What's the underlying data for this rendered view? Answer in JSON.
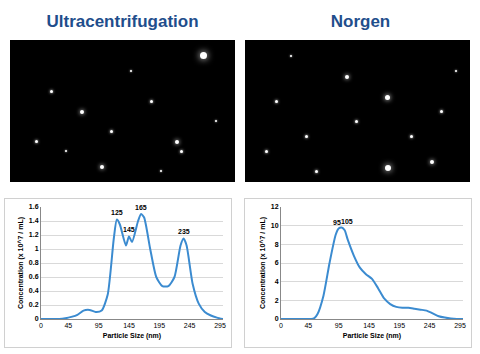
{
  "chart_data": [
    {
      "type": "line",
      "title": "Ultracentrifugation",
      "color": "#3b8bd0",
      "grid": true,
      "x_label": "Particle Size (nm)",
      "y_label": "Concentration (x 10^7 / mL)",
      "x": [
        0,
        10,
        20,
        30,
        40,
        50,
        60,
        70,
        80,
        90,
        100,
        110,
        120,
        125,
        130,
        140,
        145,
        150,
        160,
        165,
        170,
        180,
        190,
        200,
        210,
        220,
        230,
        235,
        240,
        250,
        260,
        270,
        280,
        290,
        300
      ],
      "values": [
        0,
        0,
        0,
        0,
        0.01,
        0.03,
        0.06,
        0.12,
        0.13,
        0.1,
        0.12,
        0.35,
        1.15,
        1.42,
        1.35,
        1.05,
        1.18,
        1.1,
        1.4,
        1.5,
        1.45,
        1.0,
        0.6,
        0.47,
        0.47,
        0.6,
        1.05,
        1.15,
        1.05,
        0.5,
        0.22,
        0.1,
        0.05,
        0.02,
        0
      ],
      "xlim": [
        0,
        300
      ],
      "xticks": [
        0,
        45,
        95,
        145,
        195,
        245,
        295
      ],
      "ylim": [
        0,
        1.6
      ],
      "yticks": [
        0,
        0.2,
        0.4,
        0.6,
        0.8,
        1,
        1.2,
        1.4,
        1.6
      ],
      "annotations": [
        {
          "text": "125",
          "x": 125,
          "y": 1.44
        },
        {
          "text": "145",
          "x": 145,
          "y": 1.2
        },
        {
          "text": "165",
          "x": 165,
          "y": 1.52
        },
        {
          "text": "235",
          "x": 235,
          "y": 1.17
        }
      ]
    },
    {
      "type": "line",
      "title": "Norgen",
      "color": "#3b8bd0",
      "grid": true,
      "x_label": "Particle Size (nm)",
      "y_label": "Concentration (x 10^7 / mL)",
      "x": [
        0,
        10,
        20,
        30,
        40,
        50,
        55,
        60,
        70,
        80,
        90,
        95,
        100,
        105,
        110,
        120,
        130,
        140,
        150,
        160,
        170,
        180,
        190,
        200,
        210,
        220,
        230,
        240,
        250,
        260,
        270,
        280,
        290,
        300
      ],
      "values": [
        0,
        0,
        0,
        0,
        0,
        0,
        0.1,
        0.5,
        2.5,
        6,
        9,
        9.7,
        9.8,
        9.5,
        8.5,
        6.8,
        5.5,
        4.8,
        4.3,
        3.3,
        2.2,
        1.6,
        1.3,
        1.2,
        1.2,
        1.1,
        1.0,
        0.9,
        0.6,
        0.3,
        0.15,
        0.05,
        0,
        0
      ],
      "xlim": [
        0,
        300
      ],
      "xticks": [
        0,
        45,
        95,
        145,
        195,
        245,
        295
      ],
      "ylim": [
        0,
        12
      ],
      "yticks": [
        0,
        2,
        4,
        6,
        8,
        10,
        12
      ],
      "annotations": [
        {
          "text": "95",
          "x": 92,
          "y": 9.8
        },
        {
          "text": "105",
          "x": 108,
          "y": 9.9
        }
      ]
    }
  ]
}
